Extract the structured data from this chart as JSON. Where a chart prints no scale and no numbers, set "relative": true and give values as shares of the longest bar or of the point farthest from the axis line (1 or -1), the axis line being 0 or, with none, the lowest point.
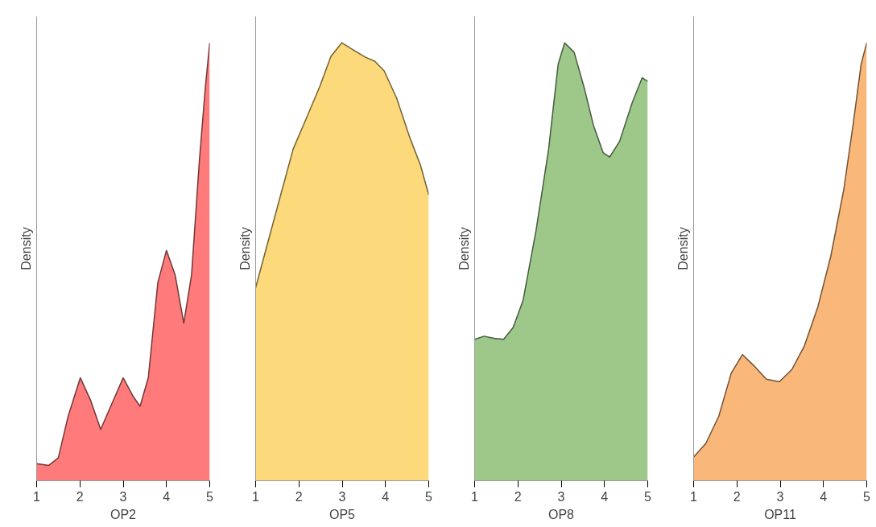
{
  "chart_data": [
    {
      "type": "area",
      "relative": true,
      "xlabel": "OP2",
      "ylabel": "Density",
      "xlim": [
        1,
        5
      ],
      "xticks": [
        1,
        2,
        3,
        4,
        5
      ],
      "grid": false,
      "x": [
        1,
        1.28,
        1.5,
        1.73,
        2.01,
        2.25,
        2.48,
        2.73,
        3,
        3.24,
        3.39,
        3.58,
        3.8,
        4,
        4.2,
        4.4,
        4.58,
        4.76,
        4.9,
        5
      ],
      "series": [
        {
          "color": "#ff7b7b",
          "values": [
            0.039,
            0.035,
            0.052,
            0.148,
            0.235,
            0.183,
            0.117,
            0.174,
            0.235,
            0.191,
            0.17,
            0.235,
            0.452,
            0.526,
            0.47,
            0.36,
            0.47,
            0.73,
            0.9,
            1.0
          ]
        }
      ]
    },
    {
      "type": "area",
      "relative": true,
      "xlabel": "OP5",
      "ylabel": "Density",
      "xlim": [
        1,
        5
      ],
      "xticks": [
        1,
        2,
        3,
        4,
        5
      ],
      "grid": false,
      "x": [
        1,
        1.29,
        1.58,
        1.87,
        2.16,
        2.49,
        2.74,
        2.99,
        3.25,
        3.54,
        3.75,
        3.97,
        4.26,
        4.55,
        4.81,
        5
      ],
      "series": [
        {
          "color": "#fcd97a",
          "values": [
            0.441,
            0.547,
            0.653,
            0.758,
            0.825,
            0.902,
            0.969,
            1.0,
            0.984,
            0.967,
            0.958,
            0.936,
            0.873,
            0.787,
            0.72,
            0.653
          ]
        }
      ]
    },
    {
      "type": "area",
      "relative": true,
      "xlabel": "OP8",
      "ylabel": "Density",
      "xlim": [
        1,
        5
      ],
      "xticks": [
        1,
        2,
        3,
        4,
        5
      ],
      "grid": false,
      "x": [
        1,
        1.22,
        1.45,
        1.67,
        1.89,
        2.12,
        2.42,
        2.71,
        2.93,
        3.08,
        3.3,
        3.53,
        3.75,
        3.97,
        4.12,
        4.35,
        4.64,
        4.87,
        5
      ],
      "series": [
        {
          "color": "#9dc88a",
          "values": [
            0.323,
            0.33,
            0.325,
            0.323,
            0.35,
            0.412,
            0.572,
            0.757,
            0.951,
            1.0,
            0.978,
            0.898,
            0.81,
            0.749,
            0.739,
            0.775,
            0.863,
            0.92,
            0.912
          ]
        }
      ]
    },
    {
      "type": "area",
      "relative": true,
      "xlabel": "OP11",
      "ylabel": "Density",
      "xlim": [
        1,
        5
      ],
      "xticks": [
        1,
        2,
        3,
        4,
        5
      ],
      "grid": false,
      "x": [
        1,
        1.28,
        1.58,
        1.87,
        2.13,
        2.39,
        2.68,
        2.98,
        3.27,
        3.56,
        3.87,
        4.17,
        4.47,
        4.69,
        4.87,
        5
      ],
      "series": [
        {
          "color": "#f9b77a",
          "values": [
            0.054,
            0.085,
            0.147,
            0.246,
            0.288,
            0.263,
            0.232,
            0.226,
            0.254,
            0.308,
            0.397,
            0.513,
            0.665,
            0.817,
            0.951,
            1.0
          ]
        }
      ]
    }
  ]
}
